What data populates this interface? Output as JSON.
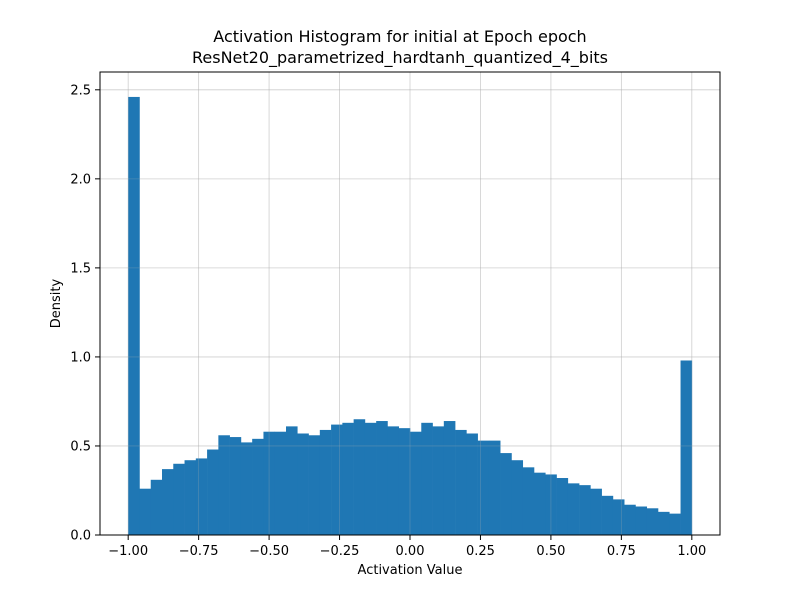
{
  "chart_data": {
    "type": "bar",
    "title": "Activation Histogram for initial at Epoch epoch",
    "subtitle": "ResNet20_parametrized_hardtanh_quantized_4_bits",
    "xlabel": "Activation Value",
    "ylabel": "Density",
    "xlim": [
      -1.1,
      1.1
    ],
    "ylim": [
      0,
      2.6
    ],
    "xticks": [
      -1.0,
      -0.75,
      -0.5,
      -0.25,
      0.0,
      0.25,
      0.5,
      0.75,
      1.0
    ],
    "xtick_labels": [
      "−1.00",
      "−0.75",
      "−0.50",
      "−0.25",
      "0.00",
      "0.25",
      "0.50",
      "0.75",
      "1.00"
    ],
    "yticks": [
      0.0,
      0.5,
      1.0,
      1.5,
      2.0,
      2.5
    ],
    "ytick_labels": [
      "0.0",
      "0.5",
      "1.0",
      "1.5",
      "2.0",
      "2.5"
    ],
    "grid": true,
    "bar_color": "#1f77b4",
    "bin_edges": [
      -1.0,
      -0.96,
      -0.92,
      -0.88,
      -0.84,
      -0.8,
      -0.76,
      -0.72,
      -0.68,
      -0.64,
      -0.6,
      -0.56,
      -0.52,
      -0.48,
      -0.44,
      -0.4,
      -0.36,
      -0.32,
      -0.28,
      -0.24,
      -0.2,
      -0.16,
      -0.12,
      -0.08,
      -0.04,
      0.0,
      0.04,
      0.08,
      0.12,
      0.16,
      0.2,
      0.24,
      0.28,
      0.32,
      0.36,
      0.4,
      0.44,
      0.48,
      0.52,
      0.56,
      0.6,
      0.64,
      0.68,
      0.72,
      0.76,
      0.8,
      0.84,
      0.88,
      0.92,
      0.96,
      1.0
    ],
    "values": [
      2.46,
      0.26,
      0.31,
      0.37,
      0.4,
      0.42,
      0.43,
      0.48,
      0.56,
      0.55,
      0.52,
      0.54,
      0.58,
      0.58,
      0.61,
      0.57,
      0.56,
      0.59,
      0.62,
      0.63,
      0.65,
      0.63,
      0.64,
      0.61,
      0.6,
      0.58,
      0.63,
      0.61,
      0.64,
      0.59,
      0.57,
      0.53,
      0.53,
      0.46,
      0.42,
      0.38,
      0.35,
      0.34,
      0.32,
      0.29,
      0.28,
      0.26,
      0.22,
      0.2,
      0.17,
      0.16,
      0.15,
      0.13,
      0.12,
      0.98
    ]
  }
}
